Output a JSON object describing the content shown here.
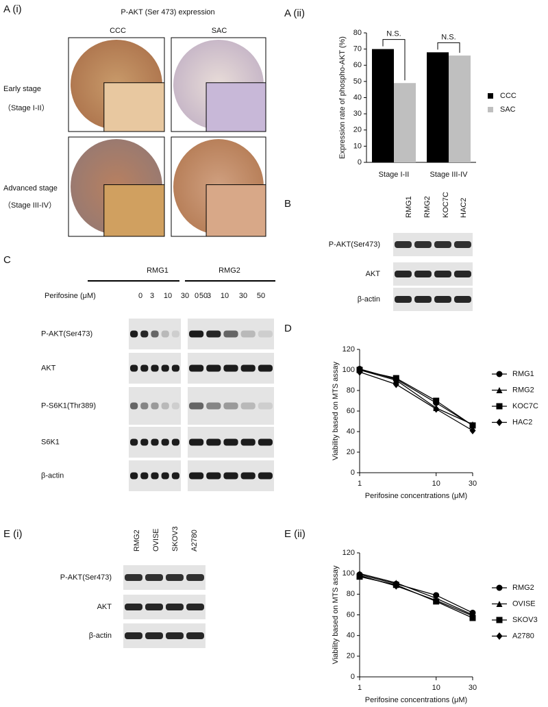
{
  "panels": {
    "a_i": {
      "label": "A (i)",
      "title": "P-AKT (Ser 473) expression",
      "columns": [
        "CCC",
        "SAC"
      ],
      "rows": [
        "Early stage",
        "（Stage I-II）",
        "Advanced  stage",
        "（Stage III-IV）"
      ]
    },
    "b": {
      "label": "B",
      "lanes": [
        "RMG1",
        "RMG2",
        "KOC7C",
        "HAC2"
      ],
      "rows": [
        "P-AKT(Ser473)",
        "AKT",
        "β-actin"
      ]
    },
    "c": {
      "label": "C",
      "groups": [
        "RMG1",
        "RMG2"
      ],
      "dose_label": "Perifosine (μM)",
      "doses": [
        "0",
        "3",
        "10",
        "30",
        "50"
      ],
      "rows": [
        "P-AKT(Ser473)",
        "AKT",
        "P-S6K1(Thr389)",
        "S6K1",
        "β-actin"
      ]
    },
    "e_i": {
      "label": "E (i)",
      "lanes": [
        "RMG2",
        "OVISE",
        "SKOV3",
        "A2780"
      ],
      "rows": [
        "P-AKT(Ser473)",
        "AKT",
        "β-actin"
      ]
    }
  },
  "chart_data": [
    {
      "type": "bar",
      "panel_label": "A (ii)",
      "ylabel": "Expression rate of phospho-AKT (%)",
      "categories": [
        "Stage I-II",
        "Stage III-IV"
      ],
      "series": [
        {
          "name": "CCC",
          "color": "#000000",
          "values": [
            70,
            68
          ]
        },
        {
          "name": "SAC",
          "color": "#bfbfbf",
          "values": [
            49,
            66
          ]
        }
      ],
      "annotations": [
        "N.S.",
        "N.S."
      ],
      "ylim": [
        0,
        80
      ],
      "yticks": [
        0,
        10,
        20,
        30,
        40,
        50,
        60,
        70,
        80
      ],
      "legend": "right"
    },
    {
      "type": "line",
      "panel_label": "D",
      "ylabel": "Viability based on MTS assay",
      "xlabel": "Perifosine concentrations (μM)",
      "x": [
        1,
        3,
        10,
        30
      ],
      "xlog": true,
      "xlim": [
        1,
        30
      ],
      "xticks": [
        1,
        10,
        30
      ],
      "ylim": [
        0,
        120
      ],
      "yticks": [
        0,
        20,
        40,
        60,
        80,
        100,
        120
      ],
      "series": [
        {
          "name": "RMG1",
          "color": "#000000",
          "marker": "circle",
          "values": [
            101,
            91,
            68,
            46
          ]
        },
        {
          "name": "RMG2",
          "color": "#000000",
          "marker": "triangle",
          "values": [
            100,
            90,
            63,
            47
          ]
        },
        {
          "name": "KOC7C",
          "color": "#000000",
          "marker": "square",
          "values": [
            100,
            92,
            70,
            46
          ]
        },
        {
          "name": "HAC2",
          "color": "#000000",
          "marker": "diamond",
          "values": [
            98,
            86,
            62,
            41
          ]
        }
      ],
      "legend": "right"
    },
    {
      "type": "line",
      "panel_label": "E (ii)",
      "ylabel": "Viability based on MTS assay",
      "xlabel": "Perifosine concentrations (μM)",
      "x": [
        1,
        3,
        10,
        30
      ],
      "xlog": true,
      "xlim": [
        1,
        30
      ],
      "xticks": [
        1,
        10,
        30
      ],
      "ylim": [
        0,
        120
      ],
      "yticks": [
        0,
        20,
        40,
        60,
        80,
        100,
        120
      ],
      "series": [
        {
          "name": "RMG2",
          "color": "#000000",
          "marker": "circle",
          "values": [
            99,
            90,
            79,
            62
          ]
        },
        {
          "name": "OVISE",
          "color": "#000000",
          "marker": "triangle",
          "values": [
            100,
            91,
            76,
            60
          ]
        },
        {
          "name": "SKOV3",
          "color": "#000000",
          "marker": "square",
          "values": [
            97,
            89,
            73,
            57
          ]
        },
        {
          "name": "A2780",
          "color": "#000000",
          "marker": "diamond",
          "values": [
            98,
            88,
            74,
            59
          ]
        }
      ],
      "legend": "right"
    }
  ]
}
